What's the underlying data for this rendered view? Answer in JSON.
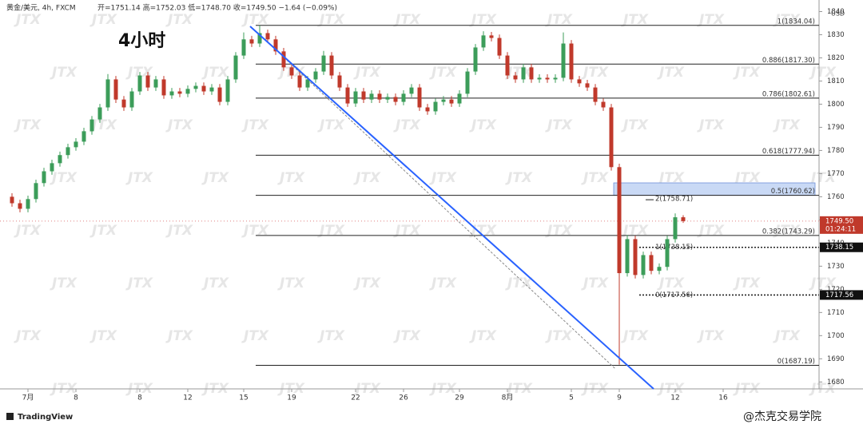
{
  "header": {
    "symbol": "黄金/美元, 4h, FXCM",
    "quote": "开=1751.14 高=1752.03 低=1748.70 收=1749.50 −1.64 (−0.09%)"
  },
  "chart_data": {
    "type": "candlestick",
    "title": "4小时",
    "currency": "USD",
    "up_color": "#3c9d5a",
    "down_color": "#c0392b",
    "open": [
      1760,
      1757.2,
      1754.8,
      1759,
      1765.9,
      1771,
      1774.5,
      1778,
      1781.4,
      1783.8,
      1788.3,
      1793.4,
      1798.6,
      1810.7,
      1802,
      1798.6,
      1805.5,
      1812.4,
      1807.2,
      1810.7,
      1803.8,
      1805.5,
      1804.5,
      1806.6,
      1807.9,
      1805.5,
      1807.2,
      1801,
      1810.7,
      1821,
      1828,
      1826.2,
      1830.7,
      1828,
      1822.8,
      1815.9,
      1812.4,
      1807.2,
      1810.7,
      1814.1,
      1821,
      1812.4,
      1807.2,
      1800.3,
      1805.5,
      1802,
      1804.5,
      1802,
      1803.1,
      1801,
      1804.5,
      1807.2,
      1798.6,
      1796.9,
      1801,
      1802,
      1800.3,
      1804.5,
      1814.1,
      1824.5,
      1829.7,
      1828.6,
      1821,
      1812.4,
      1810.7,
      1815.9,
      1810.7,
      1811.4,
      1810.7,
      1811.4,
      1826.2,
      1810.7,
      1809,
      1807.2,
      1801,
      1798.6,
      1772.8,
      1727,
      1741.7,
      1726.2,
      1734.8,
      1728,
      1729.7,
      1741.7,
      1751.14
    ],
    "high": [
      1761.5,
      1758.7,
      1760.5,
      1767.4,
      1772.5,
      1776,
      1779.5,
      1782.9,
      1785.3,
      1789.8,
      1794.9,
      1800.1,
      1813,
      1812.2,
      1803.5,
      1807,
      1813.9,
      1813.9,
      1812.2,
      1812.2,
      1807,
      1807,
      1808.1,
      1809.4,
      1809.4,
      1808.7,
      1808.7,
      1812.2,
      1822.5,
      1831,
      1829.5,
      1834,
      1832.2,
      1829.5,
      1824.3,
      1817.4,
      1813.9,
      1812.2,
      1815.6,
      1823,
      1822.5,
      1813.9,
      1808.7,
      1807,
      1807,
      1806,
      1806,
      1804.6,
      1804.6,
      1806,
      1808.7,
      1808.7,
      1800.1,
      1802.5,
      1803.5,
      1803.5,
      1806,
      1815.6,
      1826,
      1831.5,
      1831.2,
      1830.1,
      1822.5,
      1813.9,
      1817.4,
      1817.4,
      1812.9,
      1812.9,
      1812.9,
      1831,
      1827.7,
      1812.2,
      1810.5,
      1808.7,
      1802.5,
      1800.1,
      1774.3,
      1743.5,
      1743.2,
      1736.3,
      1736.3,
      1731.2,
      1743.2,
      1752.8,
      1752.03
    ],
    "low": [
      1755.7,
      1753.3,
      1753.3,
      1757.5,
      1764.4,
      1769.5,
      1773,
      1776.5,
      1779.9,
      1782.3,
      1786.8,
      1791.9,
      1797.1,
      1800.5,
      1797.1,
      1797.1,
      1804,
      1805.7,
      1805.7,
      1802.3,
      1802.3,
      1803,
      1803,
      1805.1,
      1804,
      1804,
      1799.5,
      1799.5,
      1809.2,
      1819.5,
      1824.7,
      1824.7,
      1826.5,
      1821.3,
      1814.4,
      1810.9,
      1805.7,
      1805.7,
      1809.2,
      1812.6,
      1810.9,
      1805.7,
      1798.8,
      1798.8,
      1800.5,
      1800.5,
      1800.5,
      1800.5,
      1799.5,
      1799.5,
      1803,
      1797.1,
      1795.4,
      1795.4,
      1799.5,
      1798.8,
      1798.8,
      1803,
      1812.6,
      1823,
      1827.1,
      1819.5,
      1810.9,
      1809.2,
      1809.2,
      1809.2,
      1809.2,
      1809.2,
      1809.2,
      1809.9,
      1809.2,
      1807.5,
      1805.7,
      1799.5,
      1797.1,
      1771.3,
      1687.5,
      1725.5,
      1724.7,
      1724.7,
      1726.5,
      1726.5,
      1728.2,
      1740.2,
      1748.7
    ],
    "close": [
      1757.2,
      1754.8,
      1759,
      1765.9,
      1771,
      1774.5,
      1778,
      1781.4,
      1783.8,
      1788.3,
      1793.4,
      1798.6,
      1810.7,
      1802,
      1798.6,
      1805.5,
      1812.4,
      1807.2,
      1810.7,
      1803.8,
      1805.5,
      1804.5,
      1806.6,
      1807.9,
      1805.5,
      1807.2,
      1801,
      1810.7,
      1821,
      1828,
      1826.2,
      1830.7,
      1828,
      1822.8,
      1815.9,
      1812.4,
      1807.2,
      1810.7,
      1814.1,
      1821,
      1812.4,
      1807.2,
      1800.3,
      1805.5,
      1802,
      1804.5,
      1802,
      1803.1,
      1801,
      1804.5,
      1807.2,
      1798.6,
      1796.9,
      1801,
      1802,
      1800.3,
      1804.5,
      1814.1,
      1824.5,
      1829.7,
      1828.6,
      1821,
      1812.4,
      1810.7,
      1815.9,
      1810.7,
      1811.4,
      1810.7,
      1811.4,
      1826.2,
      1810.7,
      1809,
      1807.2,
      1801,
      1798.6,
      1772.8,
      1727,
      1741.7,
      1726.2,
      1734.8,
      1728,
      1729.7,
      1741.7,
      1751.14,
      1749.5
    ],
    "xlim": [
      -1.5,
      101
    ],
    "xticks": [
      {
        "value": 2,
        "label": "7月"
      },
      8,
      {
        "value": 16,
        "label": "8"
      },
      {
        "value": 22,
        "label": "12"
      },
      {
        "value": 29,
        "label": "15"
      },
      {
        "value": 35,
        "label": "19"
      },
      {
        "value": 43,
        "label": "22"
      },
      {
        "value": 49,
        "label": "26"
      },
      {
        "value": 56,
        "label": "29"
      },
      {
        "value": 62,
        "label": "8月"
      },
      {
        "value": 70,
        "label": "5"
      },
      {
        "value": 76,
        "label": "9"
      },
      {
        "value": 83,
        "label": "12"
      },
      {
        "value": 89,
        "label": "16"
      }
    ],
    "ylim": [
      1677,
      1845
    ],
    "yticks": [
      1680,
      1690,
      1700,
      1710,
      1720,
      1730,
      1740,
      1750,
      1760,
      1770,
      1780,
      1790,
      1800,
      1810,
      1820,
      1830,
      1840
    ],
    "fib_levels": [
      {
        "value": 1834.04,
        "label": "1(1834.04)"
      },
      {
        "value": 1817.3,
        "label": "0.886(1817.30)"
      },
      {
        "value": 1802.61,
        "label": "0.786(1802.61)"
      },
      {
        "value": 1777.94,
        "label": "0.618(1777.94)"
      },
      {
        "value": 1760.62,
        "label": "0.5(1760.62)"
      },
      {
        "value": 1743.29,
        "label": "0.382(1743.29)"
      },
      {
        "value": 1687.19,
        "label": "0(1687.19)"
      }
    ],
    "zone": [
      1760.62,
      1766
    ],
    "zone_color": "#c9d9f5",
    "projections": [
      {
        "value": 1758.71,
        "label": "2(1758.71)"
      },
      {
        "value": 1738.15,
        "label": "1(1738.15)"
      },
      {
        "value": 1717.56,
        "label": "0(1717.56)"
      }
    ],
    "price_tags": [
      {
        "value": 1749.5,
        "label": "1749.50",
        "countdown": "01:24:11",
        "color": "#c0392b"
      },
      {
        "value": 1738.15,
        "label": "1738.15",
        "color": "#111111"
      },
      {
        "value": 1717.56,
        "label": "1717.56",
        "color": "#111111"
      }
    ],
    "trendline": {
      "from": [
        29.8,
        1833.6
      ],
      "to": [
        80.3,
        1677
      ],
      "color": "#2962ff"
    },
    "guide_line": {
      "from": [
        31.5,
        1828.4
      ],
      "to": [
        75.5,
        1685.7
      ]
    }
  },
  "watermark": "JTX",
  "footer": "TradingView",
  "credit": "@杰克交易学院"
}
